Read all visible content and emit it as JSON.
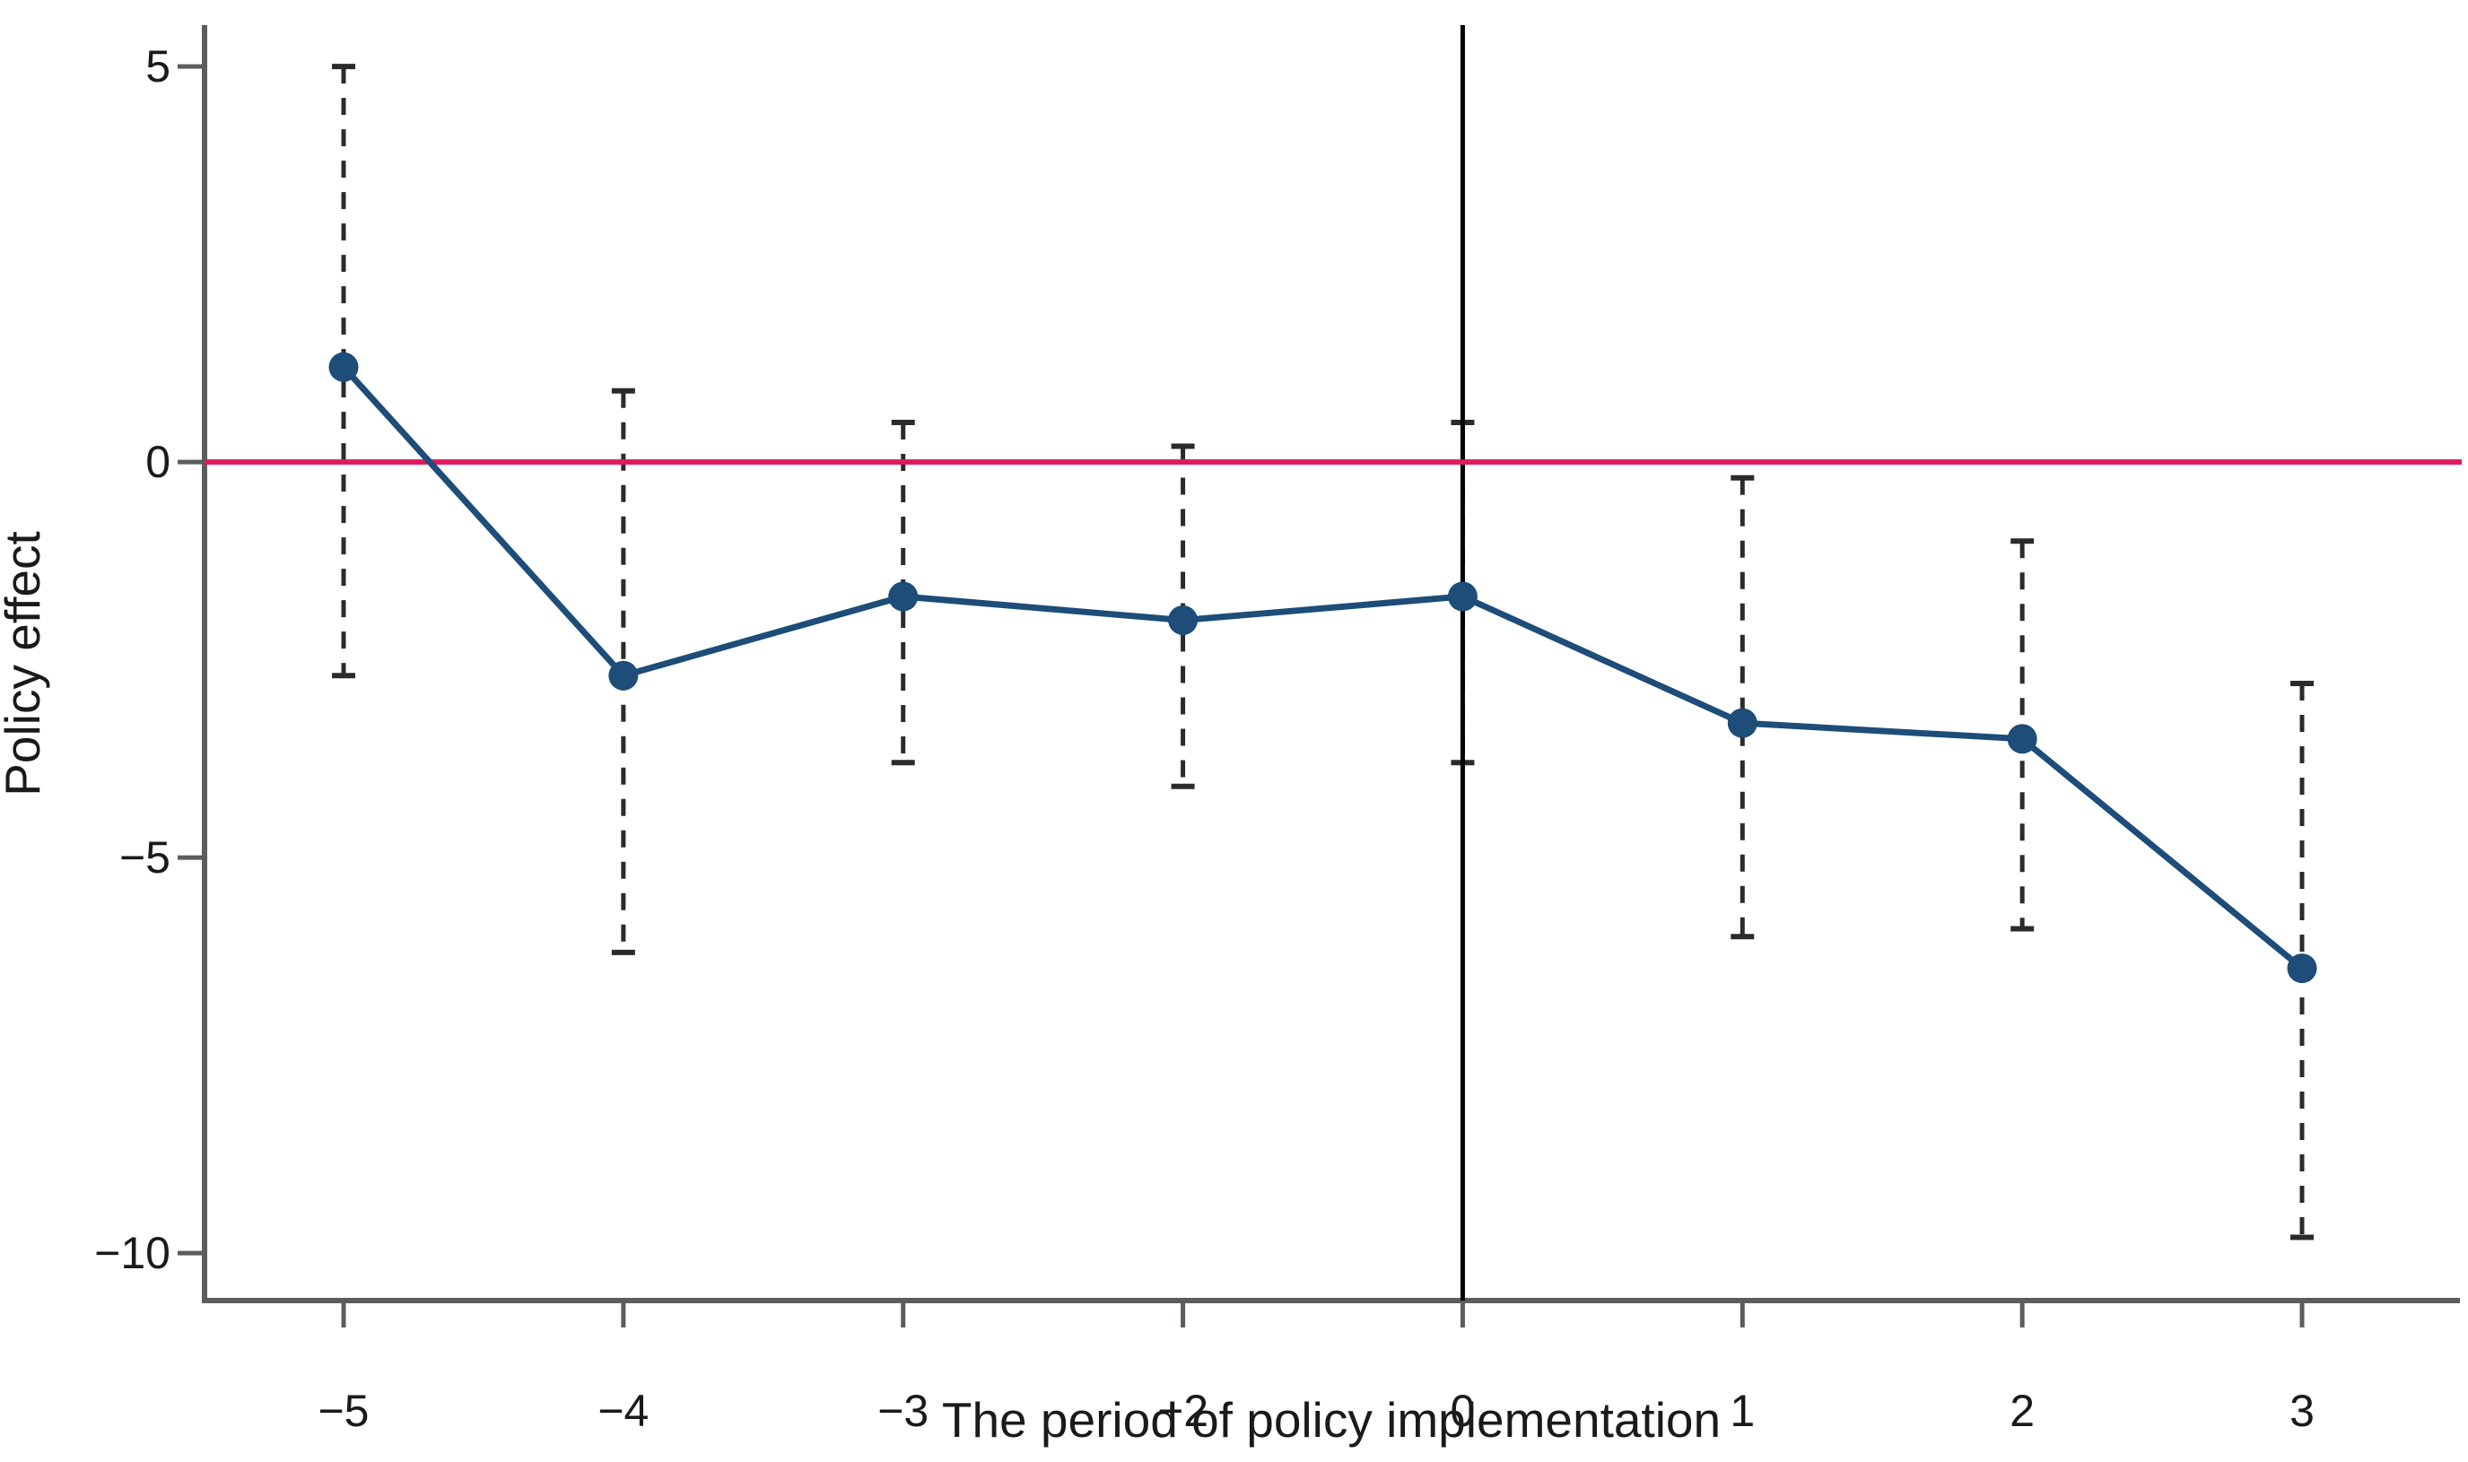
{
  "chart_data": {
    "type": "line",
    "title": "",
    "xlabel": "The period of policy implementation",
    "ylabel": "Policy effect",
    "x": [
      -5,
      -4,
      -3,
      -2,
      0,
      1,
      2,
      3
    ],
    "x_tick_labels": [
      "−5",
      "−4",
      "−3",
      "−2",
      "0",
      "1",
      "2",
      "3"
    ],
    "y_ticks": [
      5,
      0,
      -5,
      -10
    ],
    "y_tick_labels": [
      "5",
      "0",
      "−5",
      "−10"
    ],
    "ylim": [
      -10.6,
      5.5
    ],
    "series": [
      {
        "name": "policy-effect-estimate",
        "values": [
          1.2,
          -2.7,
          -1.7,
          -2.0,
          -1.7,
          -3.3,
          -3.5,
          -6.4
        ]
      }
    ],
    "ci_high": [
      5.0,
      0.9,
      0.5,
      0.2,
      0.5,
      -0.2,
      -1.0,
      -2.8
    ],
    "ci_low": [
      -2.7,
      -6.2,
      -3.8,
      -4.1,
      -3.8,
      -6.0,
      -5.9,
      -9.8
    ],
    "reference_line_y": 0,
    "vertical_line_x": 0,
    "grid": false,
    "legend": false,
    "colors": {
      "series": "#1d4d78",
      "reference_line": "#e01a5f",
      "error_bar": "#2b2b2b",
      "vertical_line": "#000000",
      "axis": "#5b5c5e",
      "text": "#1a1a1a"
    }
  }
}
